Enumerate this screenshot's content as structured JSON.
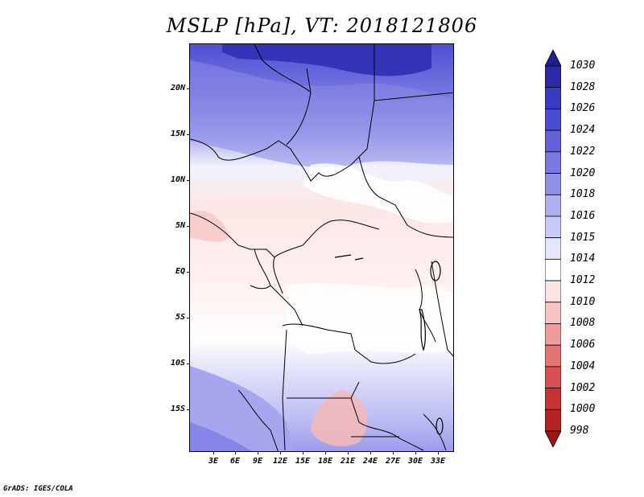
{
  "title": "MSLP [hPa], VT: 2018121806",
  "credit": "GrADS: IGES/COLA",
  "map": {
    "variable": "MSLP",
    "units": "hPa",
    "valid_time": "2018121806",
    "lat_labels": [
      "20N",
      "15N",
      "10N",
      "5N",
      "EQ",
      "5S",
      "10S",
      "15S"
    ],
    "lon_labels": [
      "3E",
      "6E",
      "9E",
      "12E",
      "15E",
      "18E",
      "21E",
      "24E",
      "27E",
      "30E",
      "33E"
    ]
  },
  "legend": {
    "levels": [
      "1030",
      "1028",
      "1026",
      "1024",
      "1022",
      "1020",
      "1018",
      "1016",
      "1015",
      "1014",
      "1012",
      "1010",
      "1008",
      "1006",
      "1004",
      "1002",
      "1000",
      "998"
    ],
    "colors": [
      "#1e1e8f",
      "#2a2aa8",
      "#3a3abf",
      "#4c4cd0",
      "#6262db",
      "#7878e3",
      "#9191ea",
      "#aeaef0",
      "#cacaf6",
      "#e6e6fb",
      "#ffffff",
      "#fde4e4",
      "#f7c3c3",
      "#ef9c9c",
      "#e57474",
      "#d94f4f",
      "#c83434",
      "#b52222",
      "#9e1414"
    ]
  }
}
